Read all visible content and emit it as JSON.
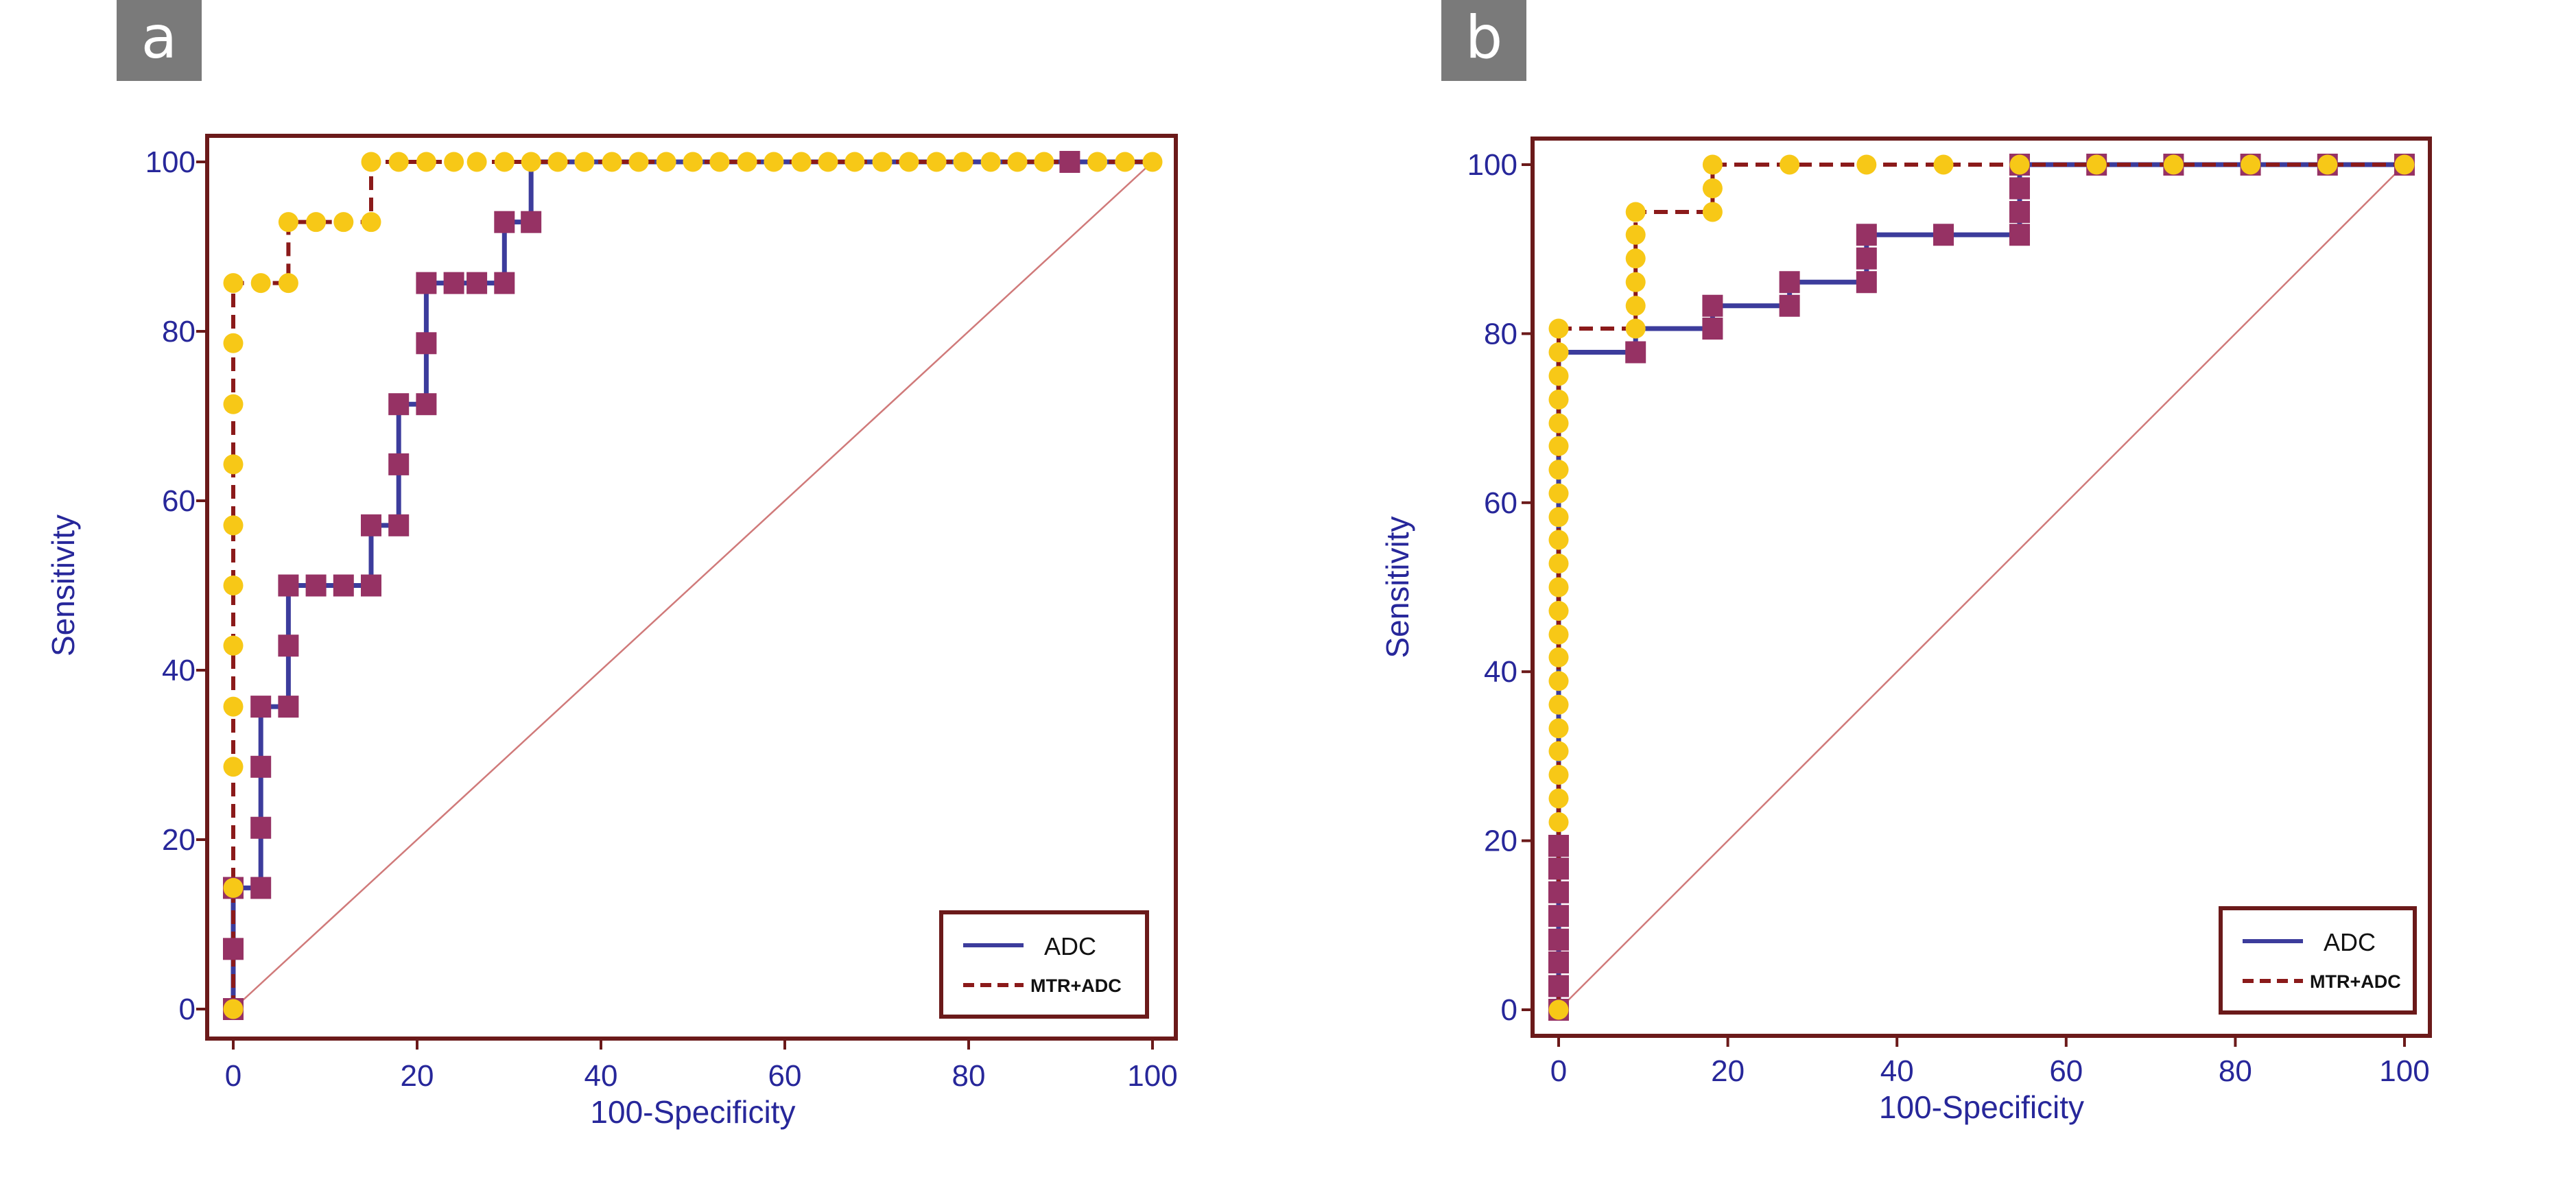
{
  "colors": {
    "frame": "#6b1a1a",
    "axis_text": "#27279a",
    "adc_line": "#3c3c9c",
    "adc_marker": "#963264",
    "mtr_line": "#8b1a1a",
    "mtr_marker": "#f7c817",
    "diagonal": "#d07a7a",
    "label_box": "#7a7a7a",
    "label_text": "#ffffff"
  },
  "chart_data": [
    {
      "type": "line",
      "panel_label": "a",
      "xlabel": "100-Specificity",
      "ylabel": "Sensitivity",
      "xlim": [
        0,
        100
      ],
      "ylim": [
        0,
        100
      ],
      "xticks": [
        "0",
        "20",
        "40",
        "60",
        "80",
        "100"
      ],
      "yticks": [
        "0",
        "20",
        "40",
        "60",
        "80",
        "100"
      ],
      "legend": {
        "position": "bottom-right",
        "entries": [
          "ADC",
          "MTR+ADC"
        ]
      },
      "reference_line": [
        [
          0,
          0
        ],
        [
          100,
          100
        ]
      ],
      "series": [
        {
          "name": "ADC",
          "style": "solid",
          "marker": "square",
          "step": [
            [
              0,
              0
            ],
            [
              0,
              7.1
            ],
            [
              0,
              14.3
            ],
            [
              3,
              14.3
            ],
            [
              3,
              21.4
            ],
            [
              3,
              28.6
            ],
            [
              3,
              35.7
            ],
            [
              6,
              35.7
            ],
            [
              6,
              42.9
            ],
            [
              6,
              50
            ],
            [
              9,
              50
            ],
            [
              12,
              50
            ],
            [
              15,
              50
            ],
            [
              15,
              57.1
            ],
            [
              18,
              57.1
            ],
            [
              18,
              64.3
            ],
            [
              18,
              71.4
            ],
            [
              21,
              71.4
            ],
            [
              21,
              78.6
            ],
            [
              21,
              85.7
            ],
            [
              24,
              85.7
            ],
            [
              26.5,
              85.7
            ],
            [
              29.5,
              85.7
            ],
            [
              29.5,
              92.9
            ],
            [
              32.4,
              92.9
            ],
            [
              32.4,
              100
            ],
            [
              100,
              100
            ]
          ],
          "markers": [
            [
              0,
              0
            ],
            [
              0,
              7.1
            ],
            [
              0,
              14.3
            ],
            [
              3,
              14.3
            ],
            [
              3,
              21.4
            ],
            [
              3,
              28.6
            ],
            [
              3,
              35.7
            ],
            [
              6,
              35.7
            ],
            [
              6,
              42.9
            ],
            [
              6,
              50
            ],
            [
              9,
              50
            ],
            [
              12,
              50
            ],
            [
              15,
              50
            ],
            [
              15,
              57.1
            ],
            [
              18,
              57.1
            ],
            [
              18,
              64.3
            ],
            [
              18,
              71.4
            ],
            [
              21,
              71.4
            ],
            [
              21,
              78.6
            ],
            [
              21,
              85.7
            ],
            [
              24,
              85.7
            ],
            [
              26.5,
              85.7
            ],
            [
              29.5,
              85.7
            ],
            [
              29.5,
              92.9
            ],
            [
              32.4,
              92.9
            ],
            [
              91,
              100
            ]
          ]
        },
        {
          "name": "MTR+ADC",
          "style": "dashed",
          "marker": "circle",
          "step": [
            [
              0,
              0
            ],
            [
              0,
              14.3
            ],
            [
              0,
              28.6
            ],
            [
              0,
              35.7
            ],
            [
              0,
              42.9
            ],
            [
              0,
              50
            ],
            [
              0,
              57.1
            ],
            [
              0,
              64.3
            ],
            [
              0,
              71.4
            ],
            [
              0,
              78.6
            ],
            [
              0,
              85.7
            ],
            [
              3,
              85.7
            ],
            [
              6,
              85.7
            ],
            [
              6,
              92.9
            ],
            [
              9,
              92.9
            ],
            [
              12,
              92.9
            ],
            [
              15,
              92.9
            ],
            [
              15,
              100
            ],
            [
              100,
              100
            ]
          ],
          "markers": [
            [
              0,
              0
            ],
            [
              0,
              14.3
            ],
            [
              0,
              28.6
            ],
            [
              0,
              35.7
            ],
            [
              0,
              42.9
            ],
            [
              0,
              50
            ],
            [
              0,
              57.1
            ],
            [
              0,
              64.3
            ],
            [
              0,
              71.4
            ],
            [
              0,
              78.6
            ],
            [
              0,
              85.7
            ],
            [
              3,
              85.7
            ],
            [
              6,
              85.7
            ],
            [
              6,
              92.9
            ],
            [
              9,
              92.9
            ],
            [
              12,
              92.9
            ],
            [
              15,
              92.9
            ],
            [
              15,
              100
            ],
            [
              18,
              100
            ],
            [
              21,
              100
            ],
            [
              24,
              100
            ],
            [
              26.5,
              100
            ],
            [
              29.5,
              100
            ],
            [
              32.4,
              100
            ],
            [
              35.3,
              100
            ],
            [
              38.2,
              100
            ],
            [
              41.2,
              100
            ],
            [
              44.1,
              100
            ],
            [
              47.1,
              100
            ],
            [
              50,
              100
            ],
            [
              52.9,
              100
            ],
            [
              55.9,
              100
            ],
            [
              58.8,
              100
            ],
            [
              61.8,
              100
            ],
            [
              64.7,
              100
            ],
            [
              67.6,
              100
            ],
            [
              70.6,
              100
            ],
            [
              73.5,
              100
            ],
            [
              76.5,
              100
            ],
            [
              79.4,
              100
            ],
            [
              82.4,
              100
            ],
            [
              85.3,
              100
            ],
            [
              88.2,
              100
            ],
            [
              94,
              100
            ],
            [
              97,
              100
            ],
            [
              100,
              100
            ]
          ]
        }
      ]
    },
    {
      "type": "line",
      "panel_label": "b",
      "xlabel": "100-Specificity",
      "ylabel": "Sensitivity",
      "xlim": [
        0,
        100
      ],
      "ylim": [
        0,
        100
      ],
      "xticks": [
        "0",
        "20",
        "40",
        "60",
        "80",
        "100"
      ],
      "yticks": [
        "0",
        "20",
        "40",
        "60",
        "80",
        "100"
      ],
      "legend": {
        "position": "bottom-right",
        "entries": [
          "ADC",
          "MTR+ADC"
        ]
      },
      "reference_line": [
        [
          0,
          0
        ],
        [
          100,
          100
        ]
      ],
      "series": [
        {
          "name": "ADC",
          "style": "solid",
          "marker": "square",
          "step": [
            [
              0,
              0
            ],
            [
              0,
              2.8
            ],
            [
              0,
              5.6
            ],
            [
              0,
              8.3
            ],
            [
              0,
              11.1
            ],
            [
              0,
              13.9
            ],
            [
              0,
              16.7
            ],
            [
              0,
              19.4
            ],
            [
              0,
              77.8
            ],
            [
              9.1,
              77.8
            ],
            [
              9.1,
              80.6
            ],
            [
              18.2,
              80.6
            ],
            [
              18.2,
              83.3
            ],
            [
              27.3,
              83.3
            ],
            [
              27.3,
              86.1
            ],
            [
              36.4,
              86.1
            ],
            [
              36.4,
              88.9
            ],
            [
              36.4,
              91.7
            ],
            [
              45.5,
              91.7
            ],
            [
              54.5,
              91.7
            ],
            [
              54.5,
              94.4
            ],
            [
              54.5,
              97.2
            ],
            [
              54.5,
              100
            ],
            [
              100,
              100
            ]
          ],
          "markers": [
            [
              0,
              0
            ],
            [
              0,
              2.8
            ],
            [
              0,
              5.6
            ],
            [
              0,
              8.3
            ],
            [
              0,
              11.1
            ],
            [
              0,
              13.9
            ],
            [
              0,
              16.7
            ],
            [
              0,
              19.4
            ],
            [
              9.1,
              77.8
            ],
            [
              18.2,
              80.6
            ],
            [
              18.2,
              83.3
            ],
            [
              27.3,
              83.3
            ],
            [
              27.3,
              86.1
            ],
            [
              36.4,
              86.1
            ],
            [
              36.4,
              88.9
            ],
            [
              36.4,
              91.7
            ],
            [
              45.5,
              91.7
            ],
            [
              54.5,
              91.7
            ],
            [
              54.5,
              94.4
            ],
            [
              54.5,
              97.2
            ],
            [
              54.5,
              100
            ],
            [
              63.6,
              100
            ],
            [
              72.7,
              100
            ],
            [
              81.8,
              100
            ],
            [
              90.9,
              100
            ],
            [
              100,
              100
            ]
          ]
        },
        {
          "name": "MTR+ADC",
          "style": "dashed",
          "marker": "circle",
          "step": [
            [
              0,
              0
            ],
            [
              0,
              22.2
            ],
            [
              0,
              25
            ],
            [
              0,
              27.8
            ],
            [
              0,
              30.6
            ],
            [
              0,
              33.3
            ],
            [
              0,
              36.1
            ],
            [
              0,
              38.9
            ],
            [
              0,
              41.7
            ],
            [
              0,
              44.4
            ],
            [
              0,
              47.2
            ],
            [
              0,
              50
            ],
            [
              0,
              52.8
            ],
            [
              0,
              55.6
            ],
            [
              0,
              58.3
            ],
            [
              0,
              61.1
            ],
            [
              0,
              63.9
            ],
            [
              0,
              66.7
            ],
            [
              0,
              69.4
            ],
            [
              0,
              72.2
            ],
            [
              0,
              75
            ],
            [
              0,
              77.8
            ],
            [
              0,
              80.6
            ],
            [
              9.1,
              80.6
            ],
            [
              9.1,
              83.3
            ],
            [
              9.1,
              86.1
            ],
            [
              9.1,
              88.9
            ],
            [
              9.1,
              91.7
            ],
            [
              9.1,
              94.4
            ],
            [
              18.2,
              94.4
            ],
            [
              18.2,
              97.2
            ],
            [
              18.2,
              100
            ],
            [
              100,
              100
            ]
          ],
          "markers": [
            [
              0,
              0
            ],
            [
              0,
              22.2
            ],
            [
              0,
              25
            ],
            [
              0,
              27.8
            ],
            [
              0,
              30.6
            ],
            [
              0,
              33.3
            ],
            [
              0,
              36.1
            ],
            [
              0,
              38.9
            ],
            [
              0,
              41.7
            ],
            [
              0,
              44.4
            ],
            [
              0,
              47.2
            ],
            [
              0,
              50
            ],
            [
              0,
              52.8
            ],
            [
              0,
              55.6
            ],
            [
              0,
              58.3
            ],
            [
              0,
              61.1
            ],
            [
              0,
              63.9
            ],
            [
              0,
              66.7
            ],
            [
              0,
              69.4
            ],
            [
              0,
              72.2
            ],
            [
              0,
              75
            ],
            [
              0,
              77.8
            ],
            [
              0,
              80.6
            ],
            [
              9.1,
              80.6
            ],
            [
              9.1,
              83.3
            ],
            [
              9.1,
              86.1
            ],
            [
              9.1,
              88.9
            ],
            [
              9.1,
              91.7
            ],
            [
              9.1,
              94.4
            ],
            [
              18.2,
              94.4
            ],
            [
              18.2,
              97.2
            ],
            [
              18.2,
              100
            ],
            [
              27.3,
              100
            ],
            [
              36.4,
              100
            ],
            [
              45.5,
              100
            ],
            [
              54.5,
              100
            ],
            [
              63.6,
              100
            ],
            [
              72.7,
              100
            ],
            [
              81.8,
              100
            ],
            [
              90.9,
              100
            ],
            [
              100,
              100
            ]
          ]
        }
      ]
    }
  ]
}
